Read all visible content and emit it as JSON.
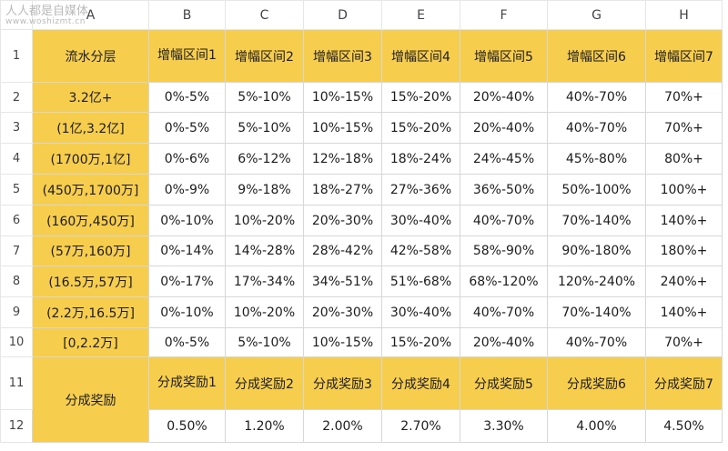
{
  "watermark": {
    "text": "人人都是自媒体",
    "url": "www.woshizmt.cn"
  },
  "columns": [
    "A",
    "B",
    "C",
    "D",
    "E",
    "F",
    "G",
    "H"
  ],
  "rows": [
    "1",
    "2",
    "3",
    "4",
    "5",
    "6",
    "7",
    "8",
    "9",
    "10",
    "11",
    "12"
  ],
  "header": {
    "a1": "流水分层",
    "ranges": [
      "增幅区间1",
      "增幅区间2",
      "增幅区间3",
      "增幅区间4",
      "增幅区间5",
      "增幅区间6",
      "增幅区间7"
    ]
  },
  "tiers": [
    {
      "label": "3.2亿+",
      "values": [
        "0%-5%",
        "5%-10%",
        "10%-15%",
        "15%-20%",
        "20%-40%",
        "40%-70%",
        "70%+"
      ]
    },
    {
      "label": "(1亿,3.2亿]",
      "values": [
        "0%-5%",
        "5%-10%",
        "10%-15%",
        "15%-20%",
        "20%-40%",
        "40%-70%",
        "70%+"
      ]
    },
    {
      "label": "(1700万,1亿]",
      "values": [
        "0%-6%",
        "6%-12%",
        "12%-18%",
        "18%-24%",
        "24%-45%",
        "45%-80%",
        "80%+"
      ]
    },
    {
      "label": "(450万,1700万]",
      "values": [
        "0%-9%",
        "9%-18%",
        "18%-27%",
        "27%-36%",
        "36%-50%",
        "50%-100%",
        "100%+"
      ]
    },
    {
      "label": "(160万,450万]",
      "values": [
        "0%-10%",
        "10%-20%",
        "20%-30%",
        "30%-40%",
        "40%-70%",
        "70%-140%",
        "140%+"
      ]
    },
    {
      "label": "(57万,160万]",
      "values": [
        "0%-14%",
        "14%-28%",
        "28%-42%",
        "42%-58%",
        "58%-90%",
        "90%-180%",
        "180%+"
      ]
    },
    {
      "label": "(16.5万,57万]",
      "values": [
        "0%-17%",
        "17%-34%",
        "34%-51%",
        "51%-68%",
        "68%-120%",
        "120%-240%",
        "240%+"
      ]
    },
    {
      "label": "(2.2万,16.5万]",
      "values": [
        "0%-10%",
        "10%-20%",
        "20%-30%",
        "30%-40%",
        "40%-70%",
        "70%-140%",
        "140%+"
      ]
    },
    {
      "label": "[0,2.2万]",
      "values": [
        "0%-5%",
        "5%-10%",
        "10%-15%",
        "15%-20%",
        "20%-40%",
        "40%-70%",
        "70%+"
      ]
    }
  ],
  "reward": {
    "label": "分成奖励",
    "headers": [
      "分成奖励1",
      "分成奖励2",
      "分成奖励3",
      "分成奖励4",
      "分成奖励5",
      "分成奖励6",
      "分成奖励7"
    ],
    "values": [
      "0.50%",
      "1.20%",
      "2.00%",
      "2.70%",
      "3.30%",
      "4.00%",
      "4.50%"
    ]
  }
}
